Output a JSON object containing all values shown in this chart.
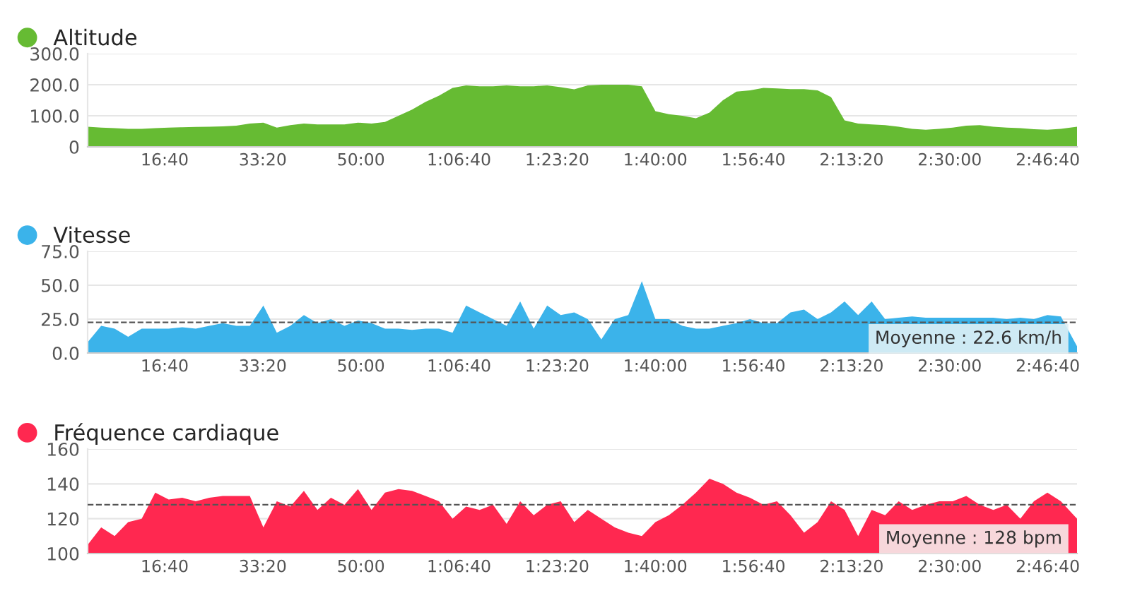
{
  "chart_data": [
    {
      "type": "area",
      "x": [
        215,
        353,
        490,
        628,
        766,
        904,
        1041,
        1179,
        1317,
        1455,
        1592,
        1730,
        1868,
        2006,
        2143,
        2281,
        2419,
        2557,
        2694,
        2832,
        2970,
        3108,
        3245,
        3383,
        3521,
        3659,
        3796,
        3934,
        4072,
        4210,
        4347,
        4485,
        4623,
        4761,
        4898,
        5036,
        5174,
        5312,
        5450,
        5587,
        5725,
        5863,
        6001,
        6138,
        6276,
        6414,
        6552,
        6689,
        6827,
        6965,
        7103,
        7240,
        7378,
        7516,
        7654,
        7791,
        7929,
        8067,
        8205,
        8342,
        8480,
        8618,
        8756,
        8894,
        9031,
        9169,
        9307,
        9445,
        9582,
        9720,
        9858,
        9996,
        10133,
        10298
      ],
      "series": [
        {
          "name": "Altitude",
          "color": "#66bb33",
          "values": [
            65,
            62,
            60,
            58,
            58,
            60,
            62,
            63,
            64,
            65,
            66,
            68,
            75,
            78,
            62,
            70,
            75,
            72,
            72,
            72,
            78,
            75,
            80,
            100,
            120,
            145,
            165,
            190,
            198,
            195,
            195,
            198,
            195,
            195,
            198,
            192,
            185,
            198,
            200,
            200,
            200,
            195,
            115,
            105,
            100,
            92,
            110,
            150,
            178,
            182,
            190,
            188,
            186,
            186,
            182,
            160,
            85,
            75,
            72,
            70,
            65,
            58,
            55,
            58,
            62,
            68,
            70,
            65,
            62,
            60,
            57,
            55,
            58,
            65
          ]
        }
      ],
      "xlim": [
        215,
        10298
      ],
      "xticks": [
        {
          "value": 1000,
          "label": "16:40"
        },
        {
          "value": 2000,
          "label": "33:20"
        },
        {
          "value": 3000,
          "label": "50:00"
        },
        {
          "value": 4000,
          "label": "1:06:40"
        },
        {
          "value": 5000,
          "label": "1:23:20"
        },
        {
          "value": 6000,
          "label": "1:40:00"
        },
        {
          "value": 7000,
          "label": "1:56:40"
        },
        {
          "value": 8000,
          "label": "2:13:20"
        },
        {
          "value": 9000,
          "label": "2:30:00"
        },
        {
          "value": 10000,
          "label": "2:46:40"
        }
      ],
      "ylim": [
        0,
        300
      ],
      "yticks": [
        0,
        {
          "value": 100,
          "label": "100.0"
        },
        {
          "value": 200,
          "label": "200.0"
        },
        {
          "value": 300,
          "label": "300.0"
        }
      ],
      "grid": "y",
      "legend": "top left"
    },
    {
      "type": "area",
      "x": [
        215,
        353,
        490,
        628,
        766,
        904,
        1041,
        1179,
        1317,
        1455,
        1592,
        1730,
        1868,
        2006,
        2143,
        2281,
        2419,
        2557,
        2694,
        2832,
        2970,
        3108,
        3245,
        3383,
        3521,
        3659,
        3796,
        3934,
        4072,
        4210,
        4347,
        4485,
        4623,
        4761,
        4898,
        5036,
        5174,
        5312,
        5450,
        5587,
        5725,
        5863,
        6001,
        6138,
        6276,
        6414,
        6552,
        6689,
        6827,
        6965,
        7103,
        7240,
        7378,
        7516,
        7654,
        7791,
        7929,
        8067,
        8205,
        8342,
        8480,
        8618,
        8756,
        8894,
        9031,
        9169,
        9307,
        9445,
        9582,
        9720,
        9858,
        9996,
        10133,
        10298
      ],
      "series": [
        {
          "name": "Vitesse",
          "color": "#3bb3ea",
          "values": [
            8,
            20,
            18,
            12,
            18,
            18,
            18,
            19,
            18,
            20,
            22,
            20,
            20,
            35,
            15,
            20,
            28,
            22,
            25,
            20,
            24,
            22,
            18,
            18,
            17,
            18,
            18,
            15,
            35,
            30,
            25,
            20,
            38,
            18,
            35,
            28,
            30,
            25,
            10,
            25,
            28,
            53,
            25,
            25,
            20,
            18,
            18,
            20,
            22,
            25,
            22,
            22,
            30,
            32,
            25,
            30,
            38,
            28,
            38,
            25,
            26,
            27,
            26,
            26,
            26,
            26,
            26,
            26,
            25,
            26,
            25,
            28,
            27,
            5
          ]
        }
      ],
      "xlim": [
        215,
        10298
      ],
      "xticks": [
        {
          "value": 1000,
          "label": "16:40"
        },
        {
          "value": 2000,
          "label": "33:20"
        },
        {
          "value": 3000,
          "label": "50:00"
        },
        {
          "value": 4000,
          "label": "1:06:40"
        },
        {
          "value": 5000,
          "label": "1:23:20"
        },
        {
          "value": 6000,
          "label": "1:40:00"
        },
        {
          "value": 7000,
          "label": "1:56:40"
        },
        {
          "value": 8000,
          "label": "2:13:20"
        },
        {
          "value": 9000,
          "label": "2:30:00"
        },
        {
          "value": 10000,
          "label": "2:46:40"
        }
      ],
      "ylim": [
        0,
        75
      ],
      "yticks": [
        {
          "value": 0,
          "label": "0.0"
        },
        {
          "value": 25,
          "label": "25.0"
        },
        {
          "value": 50,
          "label": "50.0"
        },
        {
          "value": 75,
          "label": "75.0"
        }
      ],
      "grid": "y",
      "legend": "top left",
      "ref_lines": [
        {
          "axis": "y",
          "value": 22.6,
          "label": "Moyenne : 22.6 km/h",
          "color": "#555555",
          "line_style": "dashed"
        }
      ]
    },
    {
      "type": "area",
      "x": [
        215,
        353,
        490,
        628,
        766,
        904,
        1041,
        1179,
        1317,
        1455,
        1592,
        1730,
        1868,
        2006,
        2143,
        2281,
        2419,
        2557,
        2694,
        2832,
        2970,
        3108,
        3245,
        3383,
        3521,
        3659,
        3796,
        3934,
        4072,
        4210,
        4347,
        4485,
        4623,
        4761,
        4898,
        5036,
        5174,
        5312,
        5450,
        5587,
        5725,
        5863,
        6001,
        6138,
        6276,
        6414,
        6552,
        6689,
        6827,
        6965,
        7103,
        7240,
        7378,
        7516,
        7654,
        7791,
        7929,
        8067,
        8205,
        8342,
        8480,
        8618,
        8756,
        8894,
        9031,
        9169,
        9307,
        9445,
        9582,
        9720,
        9858,
        9996,
        10133,
        10298
      ],
      "series": [
        {
          "name": "Fréquence cardiaque",
          "color": "#ff2850",
          "values": [
            105,
            115,
            110,
            118,
            120,
            135,
            131,
            132,
            130,
            132,
            133,
            133,
            133,
            115,
            130,
            127,
            136,
            125,
            132,
            128,
            137,
            125,
            135,
            137,
            136,
            133,
            130,
            120,
            127,
            125,
            128,
            117,
            130,
            122,
            128,
            130,
            118,
            125,
            120,
            115,
            112,
            110,
            118,
            122,
            128,
            135,
            143,
            140,
            135,
            132,
            128,
            130,
            122,
            112,
            118,
            130,
            125,
            110,
            125,
            122,
            130,
            125,
            128,
            130,
            130,
            133,
            128,
            125,
            128,
            120,
            130,
            135,
            130,
            120
          ]
        }
      ],
      "xlim": [
        215,
        10298
      ],
      "xticks": [
        {
          "value": 1000,
          "label": "16:40"
        },
        {
          "value": 2000,
          "label": "33:20"
        },
        {
          "value": 3000,
          "label": "50:00"
        },
        {
          "value": 4000,
          "label": "1:06:40"
        },
        {
          "value": 5000,
          "label": "1:23:20"
        },
        {
          "value": 6000,
          "label": "1:40:00"
        },
        {
          "value": 7000,
          "label": "1:56:40"
        },
        {
          "value": 8000,
          "label": "2:13:20"
        },
        {
          "value": 9000,
          "label": "2:30:00"
        },
        {
          "value": 10000,
          "label": "2:46:40"
        }
      ],
      "ylim": [
        100,
        160
      ],
      "yticks": [
        100,
        120,
        140,
        160
      ],
      "grid": "y",
      "legend": "top left",
      "ref_lines": [
        {
          "axis": "y",
          "value": 128,
          "label": "Moyenne : 128 bpm",
          "color": "#555555",
          "line_style": "dashed"
        }
      ]
    }
  ]
}
